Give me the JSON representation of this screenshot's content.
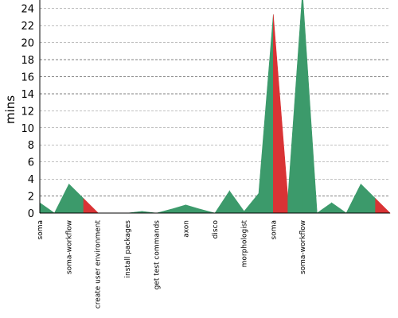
{
  "chart_data": {
    "type": "area",
    "title": "",
    "xlabel": "",
    "ylabel": "mins",
    "ylim": [
      0,
      24
    ],
    "y_ticks": [
      0,
      2,
      4,
      6,
      8,
      10,
      12,
      14,
      16,
      18,
      20,
      22,
      24
    ],
    "grid": true,
    "legend": "none",
    "colors": {
      "success": "#3c9a6b",
      "failure": "#d93335",
      "grid": "#808080",
      "axis": "#000000"
    },
    "x_labels": [
      "soma",
      "soma-workflow",
      "create user environment",
      "install packages",
      "get test commands",
      "axon",
      "disco",
      "morphologist",
      "soma",
      "soma-workflow"
    ],
    "points": [
      {
        "x": 0,
        "y": 1.2,
        "status": "success"
      },
      {
        "x": 1,
        "y": 0.0,
        "status": "success"
      },
      {
        "x": 2,
        "y": 3.4,
        "status": "success"
      },
      {
        "x": 3,
        "y": 1.7,
        "status": "failure"
      },
      {
        "x": 4,
        "y": 0.0,
        "status": "success"
      },
      {
        "x": 5,
        "y": 0.0,
        "status": "success"
      },
      {
        "x": 6,
        "y": 0.0,
        "status": "success"
      },
      {
        "x": 7,
        "y": 0.2,
        "status": "success"
      },
      {
        "x": 8,
        "y": 0.0,
        "status": "success"
      },
      {
        "x": 9,
        "y": 0.45,
        "status": "success"
      },
      {
        "x": 10,
        "y": 0.95,
        "status": "success"
      },
      {
        "x": 11,
        "y": 0.45,
        "status": "success"
      },
      {
        "x": 12,
        "y": 0.0,
        "status": "success"
      },
      {
        "x": 13,
        "y": 2.6,
        "status": "success"
      },
      {
        "x": 14,
        "y": 0.2,
        "status": "success"
      },
      {
        "x": 15,
        "y": 2.3,
        "status": "success"
      },
      {
        "x": 16,
        "y": 23.3,
        "status": "failure"
      },
      {
        "x": 17,
        "y": 1.8,
        "status": "success"
      },
      {
        "x": 18,
        "y": 26.0,
        "status": "success"
      },
      {
        "x": 19,
        "y": 0.0,
        "status": "success"
      },
      {
        "x": 20,
        "y": 1.2,
        "status": "success"
      },
      {
        "x": 21,
        "y": 0.0,
        "status": "success"
      },
      {
        "x": 22,
        "y": 3.4,
        "status": "success"
      },
      {
        "x": 23,
        "y": 1.7,
        "status": "failure"
      },
      {
        "x": 24,
        "y": 0.0,
        "status": "success"
      }
    ],
    "x_label_positions": [
      0,
      2,
      3.95,
      6,
      8,
      10,
      12,
      14,
      16,
      18
    ]
  }
}
